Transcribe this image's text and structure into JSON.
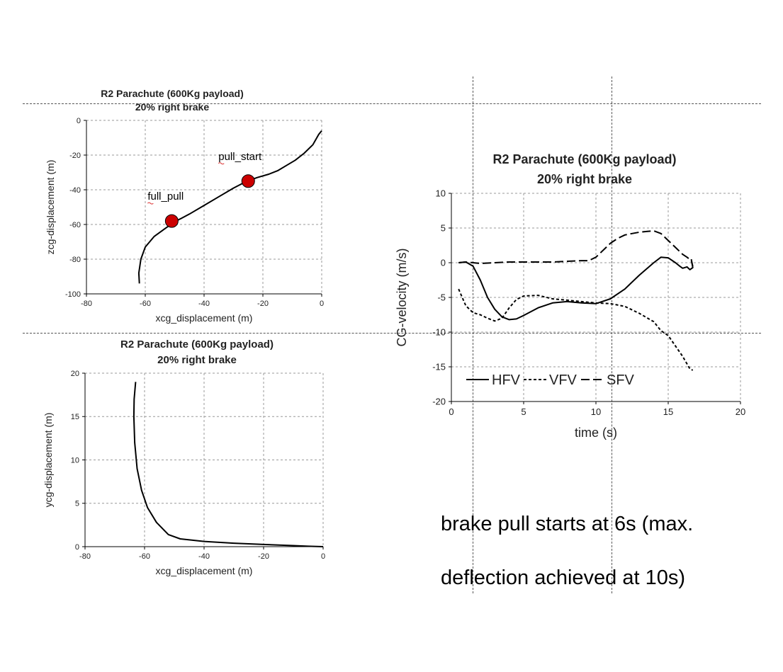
{
  "note": {
    "line1": "brake pull starts at 6s (max.",
    "line2": "deflection achieved at 10s)"
  },
  "chart_data": [
    {
      "type": "line",
      "title": "R2 Parachute (600Kg payload)",
      "subtitle": "20% right brake",
      "xlabel": "xcg_displacement (m)",
      "ylabel": "zcg-displacement (m)",
      "xlim": [
        -80,
        0
      ],
      "ylim": [
        -100,
        0
      ],
      "xticks": [
        -80,
        -60,
        -40,
        -20,
        0
      ],
      "yticks": [
        -100,
        -80,
        -60,
        -40,
        -20,
        0
      ],
      "grid": true,
      "series": [
        {
          "name": "trajectory",
          "x": [
            -62,
            -62.2,
            -61.5,
            -60,
            -57,
            -53,
            -50,
            -45,
            -40,
            -35,
            -30,
            -26,
            -22,
            -18,
            -15,
            -12,
            -9,
            -6,
            -3,
            -1,
            0
          ],
          "y": [
            -94,
            -88,
            -80,
            -73,
            -67,
            -62,
            -58.5,
            -54,
            -49,
            -44,
            -39,
            -35.5,
            -33,
            -31,
            -29,
            -26,
            -23,
            -19,
            -14,
            -8,
            -6
          ]
        }
      ],
      "markers": [
        {
          "label": "pull_start",
          "x": -25,
          "y": -35,
          "color": "#cc0000"
        },
        {
          "label": "full_pull",
          "x": -51,
          "y": -58,
          "color": "#cc0000"
        }
      ]
    },
    {
      "type": "line",
      "title": "R2 Parachute (600Kg payload)",
      "subtitle": "20% right brake",
      "xlabel": "xcg_displacement (m)",
      "ylabel": "ycg-displacement (m)",
      "xlim": [
        -80,
        0
      ],
      "ylim": [
        0,
        20
      ],
      "xticks": [
        -80,
        -60,
        -40,
        -20,
        0
      ],
      "yticks": [
        0,
        5,
        10,
        15,
        20
      ],
      "grid": true,
      "series": [
        {
          "name": "trajectory",
          "x": [
            -63,
            -63.5,
            -63.6,
            -63.3,
            -62.5,
            -61,
            -59,
            -56,
            -52,
            -48,
            -40,
            -30,
            -20,
            -10,
            -5,
            0
          ],
          "y": [
            19,
            17,
            15,
            12,
            9,
            6.5,
            4.5,
            2.8,
            1.4,
            0.9,
            0.6,
            0.4,
            0.25,
            0.12,
            0.05,
            0
          ]
        }
      ]
    },
    {
      "type": "line",
      "title": "R2 Parachute (600Kg payload)",
      "subtitle": "20% right brake",
      "xlabel": "time (s)",
      "ylabel": "CG-velocity (m/s)",
      "xlim": [
        0,
        20
      ],
      "ylim": [
        -20,
        10
      ],
      "xticks": [
        0,
        5,
        10,
        15,
        20
      ],
      "yticks": [
        -20,
        -15,
        -10,
        -5,
        0,
        5,
        10
      ],
      "grid": true,
      "legend": [
        "HFV",
        "VFV",
        "SFV"
      ],
      "legend_position": "bottom-left",
      "series": [
        {
          "name": "HFV",
          "style": "solid",
          "x": [
            0.5,
            1,
            1.5,
            2,
            2.5,
            3,
            3.5,
            4,
            4.5,
            5,
            6,
            7,
            8,
            9,
            10,
            11,
            12,
            13,
            14,
            14.5,
            15,
            15.5,
            15.8,
            16,
            16.3,
            16.5,
            16.7,
            16.6
          ],
          "y": [
            0,
            0.1,
            -0.5,
            -2.5,
            -5,
            -6.7,
            -7.8,
            -8.2,
            -8.1,
            -7.6,
            -6.5,
            -5.8,
            -5.6,
            -5.8,
            -5.9,
            -5.2,
            -3.8,
            -1.8,
            0,
            0.8,
            0.7,
            0,
            -0.5,
            -0.8,
            -0.6,
            -1,
            -0.7,
            0.5
          ]
        },
        {
          "name": "VFV",
          "style": "dashed-short",
          "x": [
            0.5,
            1,
            1.5,
            2,
            2.5,
            3,
            3.5,
            4,
            4.5,
            5,
            6,
            7,
            8,
            9,
            10,
            11,
            12,
            13,
            14,
            14.5,
            15,
            15.5,
            16,
            16.5,
            16.7
          ],
          "y": [
            -3.8,
            -6.2,
            -7.2,
            -7.5,
            -8,
            -8.4,
            -8,
            -6.5,
            -5.3,
            -4.8,
            -4.7,
            -5.2,
            -5.4,
            -5.6,
            -5.8,
            -5.9,
            -6.3,
            -7.3,
            -8.5,
            -9.8,
            -10.5,
            -12,
            -13.5,
            -15.3,
            -15.5
          ]
        },
        {
          "name": "SFV",
          "style": "dashed-long",
          "x": [
            0.5,
            1,
            1.5,
            2,
            3,
            4,
            5,
            6,
            7,
            8,
            9,
            9.5,
            10,
            11,
            11.5,
            12,
            12.5,
            13,
            13.5,
            14,
            14.5,
            15,
            15.5,
            16,
            16.3,
            16.6,
            16.7
          ],
          "y": [
            0,
            0.1,
            0,
            -0.1,
            0,
            0.1,
            0.1,
            0.1,
            0.1,
            0.2,
            0.3,
            0.3,
            0.8,
            2.8,
            3.5,
            4,
            4.2,
            4.4,
            4.5,
            4.6,
            4.2,
            3.2,
            2.2,
            1.2,
            0.8,
            0.3,
            -0.5
          ]
        }
      ]
    }
  ]
}
